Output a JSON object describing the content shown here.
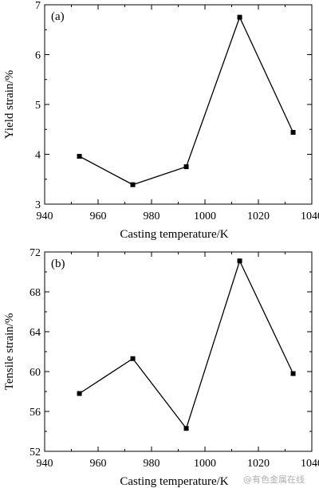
{
  "watermark": "@有色金属在线",
  "chart_data": [
    {
      "type": "line",
      "panel_label": "(a)",
      "xlabel": "Casting temperature/K",
      "ylabel": "Yield strain/%",
      "xlim": [
        940,
        1040
      ],
      "ylim": [
        3,
        7
      ],
      "x_ticks": [
        940,
        960,
        980,
        1000,
        1020,
        1040
      ],
      "y_ticks": [
        3,
        4,
        5,
        6,
        7
      ],
      "grid": false,
      "marker": "square",
      "x": [
        953,
        973,
        993,
        1013,
        1033
      ],
      "y": [
        3.96,
        3.39,
        3.75,
        6.75,
        4.44
      ]
    },
    {
      "type": "line",
      "panel_label": "(b)",
      "xlabel": "Casting temperature/K",
      "ylabel": "Tensile strain/%",
      "xlim": [
        940,
        1040
      ],
      "ylim": [
        52,
        72
      ],
      "x_ticks": [
        940,
        960,
        980,
        1000,
        1020,
        1040
      ],
      "y_ticks": [
        52,
        56,
        60,
        64,
        68,
        72
      ],
      "grid": false,
      "marker": "square",
      "x": [
        953,
        973,
        993,
        1013,
        1033
      ],
      "y": [
        57.8,
        61.3,
        54.3,
        71.1,
        59.8
      ]
    }
  ]
}
